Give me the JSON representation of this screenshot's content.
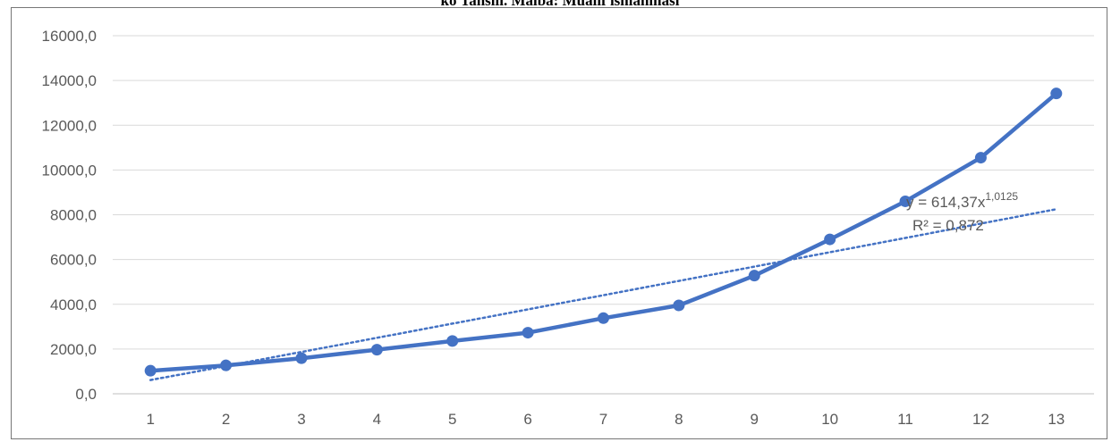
{
  "header": {
    "clipped_caption": "ko Tahsili. Malba: Mualif ishlanmasi"
  },
  "chart_data": {
    "type": "line",
    "title": "",
    "xlabel": "",
    "ylabel": "",
    "categories": [
      "1",
      "2",
      "3",
      "4",
      "5",
      "6",
      "7",
      "8",
      "9",
      "10",
      "11",
      "12",
      "13"
    ],
    "series": [
      {
        "values": [
          1030,
          1270,
          1590,
          1970,
          2360,
          2730,
          3380,
          3950,
          5280,
          6900,
          8600,
          10550,
          13420
        ],
        "color": "#4472C4",
        "markers": true
      }
    ],
    "trendline": {
      "type": "power",
      "equation_prefix": "y = 614,37x",
      "equation_exponent": "1,0125",
      "r_squared_label": "R² = 0,872",
      "color": "#4472C4",
      "style": "dotted"
    },
    "ylim": [
      0,
      16000
    ],
    "yticks": [
      "0,0",
      "2000,0",
      "4000,0",
      "6000,0",
      "8000,0",
      "10000,0",
      "12000,0",
      "14000,0",
      "16000,0"
    ],
    "grid": "horizontal",
    "legend": "none"
  }
}
